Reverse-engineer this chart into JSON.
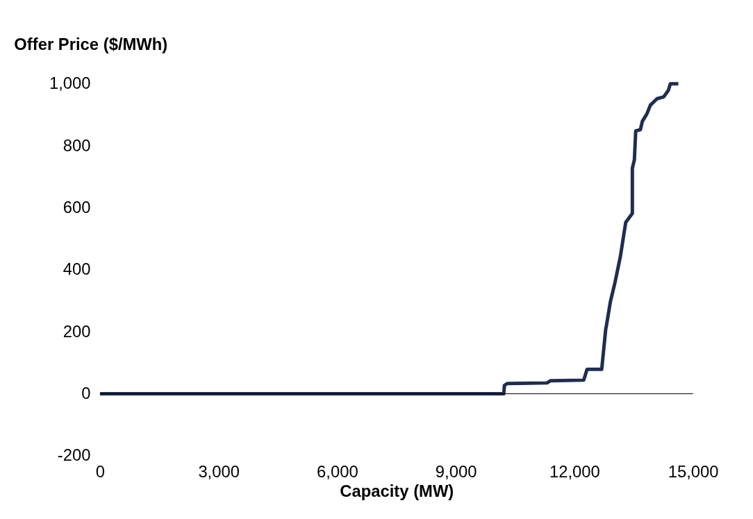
{
  "chart_data": {
    "type": "line",
    "xlabel": "Capacity (MW)",
    "ylabel": "Offer Price ($/MWh)",
    "x": [
      0,
      10213,
      10230,
      10298,
      11309,
      11393,
      12236,
      12320,
      12691,
      12792,
      12810,
      12910,
      13028,
      13163,
      13298,
      13466,
      13466,
      13517,
      13551,
      13669,
      13719,
      13837,
      13921,
      14090,
      14258,
      14376,
      14427,
      14629
    ],
    "series": [
      {
        "color": "#1f2d50",
        "values": [
          0,
          0,
          27,
          33,
          35,
          42,
          44,
          79,
          79,
          208,
          220,
          297,
          360,
          443,
          553,
          582,
          728,
          755,
          848,
          852,
          879,
          904,
          931,
          952,
          958,
          979,
          1000,
          1000
        ]
      }
    ],
    "xlim": [
      0,
      15000
    ],
    "xticks": [
      {
        "value": 0,
        "label": "0"
      },
      {
        "value": 3000,
        "label": "3,000"
      },
      {
        "value": 6000,
        "label": "6,000"
      },
      {
        "value": 9000,
        "label": "9,000"
      },
      {
        "value": 12000,
        "label": "12,000"
      },
      {
        "value": 15000,
        "label": "15,000"
      }
    ],
    "ylim": [
      -200,
      1000
    ],
    "yticks": [
      {
        "value": -200,
        "label": "-200"
      },
      {
        "value": 0,
        "label": "0"
      },
      {
        "value": 200,
        "label": "200"
      },
      {
        "value": 400,
        "label": "400"
      },
      {
        "value": 600,
        "label": "600"
      },
      {
        "value": 800,
        "label": "800"
      },
      {
        "value": 1000,
        "label": "1,000"
      }
    ],
    "ref_lines": [
      {
        "axis": "y",
        "value": 0,
        "color": "#000000",
        "line_style": "solid"
      }
    ],
    "grid": false,
    "line_style": "solid",
    "marker": "none"
  }
}
